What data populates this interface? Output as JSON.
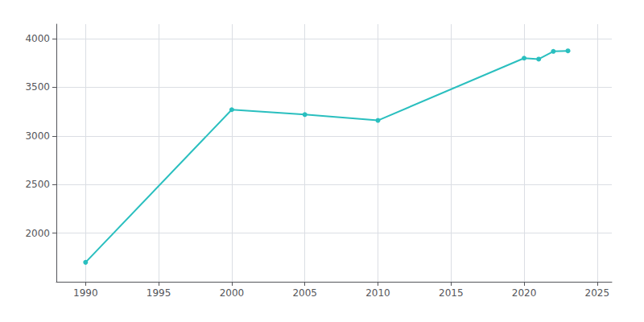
{
  "chart_data": {
    "type": "line",
    "x": [
      1990,
      2000,
      2005,
      2010,
      2020,
      2021,
      2022,
      2023
    ],
    "values": [
      1700,
      3270,
      3220,
      3160,
      3800,
      3790,
      3870,
      3875
    ],
    "color": "#2abfbf",
    "marker": "circle",
    "xlim": [
      1988,
      2026
    ],
    "ylim": [
      1500,
      4150
    ],
    "xticks": [
      1990,
      1995,
      2000,
      2005,
      2010,
      2015,
      2020,
      2025
    ],
    "yticks": [
      2000,
      2500,
      3000,
      3500,
      4000
    ],
    "grid": true
  }
}
